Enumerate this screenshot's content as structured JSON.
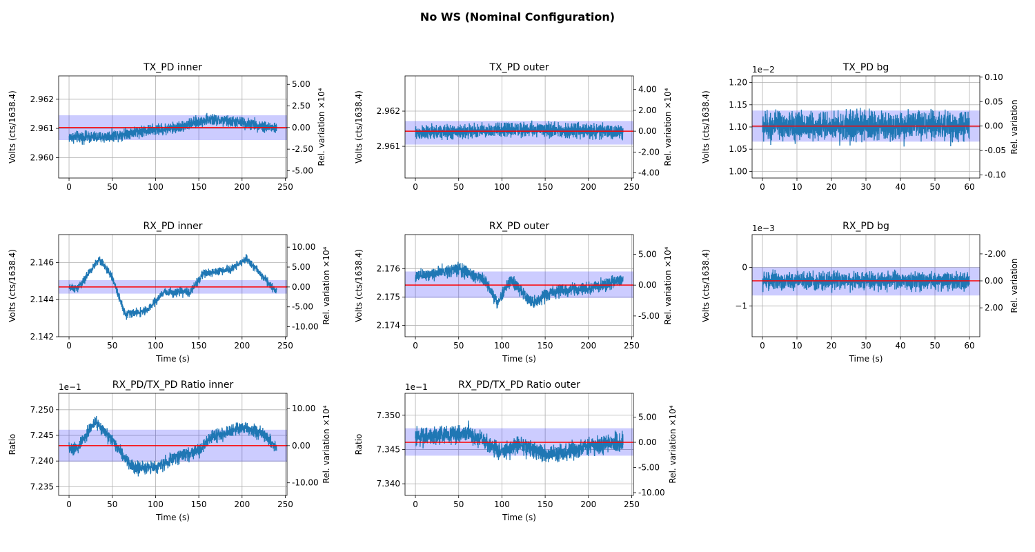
{
  "figure": {
    "title": "No WS (Nominal Configuration)",
    "colors": {
      "line": "#1f77b4",
      "mean": "#ff0000",
      "band": "#0000ff",
      "grid": "#b0b0b0"
    }
  },
  "chart_data": [
    {
      "type": "line",
      "title": "TX_PD inner",
      "xlabel": "",
      "ylabel": "Volts (cts/1638.4)",
      "y2label": "Rel. variation ×10⁴",
      "x_range": [
        0,
        240
      ],
      "duration_s": 240,
      "xlim": [
        -12,
        252
      ],
      "xticks": [
        0,
        50,
        100,
        150,
        200,
        250
      ],
      "xtick_labels": [
        "0",
        "50",
        "100",
        "150",
        "200",
        "250"
      ],
      "ylim": [
        2.9593,
        2.9628
      ],
      "yticks": [
        2.96,
        2.961,
        2.962
      ],
      "ytick_labels": [
        "2.960",
        "2.961",
        "2.962"
      ],
      "y_offset_label": "",
      "y2_ticks": [
        5,
        2.5,
        0,
        -2.5,
        -5
      ],
      "y2_tick_labels": [
        "5.00",
        "2.50",
        "0.00",
        "-2.50",
        "-5.00"
      ],
      "mean": 2.96103,
      "band": [
        2.9606,
        2.96145
      ],
      "trend": [
        [
          0,
          2.9607
        ],
        [
          40,
          2.9607
        ],
        [
          80,
          2.9609
        ],
        [
          120,
          2.961
        ],
        [
          160,
          2.9613
        ],
        [
          200,
          2.9612
        ],
        [
          240,
          2.961
        ]
      ],
      "noise_amp": 0.00053,
      "grid": true
    },
    {
      "type": "line",
      "title": "TX_PD outer",
      "xlabel": "",
      "ylabel": "Volts (cts/1638.4)",
      "y2label": "Rel. variation ×10⁴",
      "x_range": [
        0,
        240
      ],
      "duration_s": 240,
      "xlim": [
        -12,
        252
      ],
      "xticks": [
        0,
        50,
        100,
        150,
        200,
        250
      ],
      "xtick_labels": [
        "0",
        "50",
        "100",
        "150",
        "200",
        "250"
      ],
      "ylim": [
        2.9601,
        2.963
      ],
      "yticks": [
        2.961,
        2.962
      ],
      "ytick_labels": [
        "2.961",
        "2.962"
      ],
      "y_offset_label": "",
      "y2_ticks": [
        4,
        2,
        0,
        -2,
        -4
      ],
      "y2_tick_labels": [
        "4.00",
        "2.00",
        "0.00",
        "-2.00",
        "-4.00"
      ],
      "mean": 2.96143,
      "band": [
        2.96105,
        2.96172
      ],
      "trend": [
        [
          0,
          2.96138
        ],
        [
          60,
          2.96142
        ],
        [
          120,
          2.96148
        ],
        [
          180,
          2.96145
        ],
        [
          240,
          2.9614
        ]
      ],
      "noise_amp": 0.00055,
      "grid": true
    },
    {
      "type": "line",
      "title": "TX_PD bg",
      "xlabel": "",
      "ylabel": "Volts (cts/1638.4)",
      "y2label": "Rel. variation",
      "x_range": [
        0,
        60
      ],
      "duration_s": 60,
      "xlim": [
        -3,
        63
      ],
      "xticks": [
        0,
        10,
        20,
        30,
        40,
        50,
        60
      ],
      "xtick_labels": [
        "0",
        "10",
        "20",
        "30",
        "40",
        "50",
        "60"
      ],
      "ylim": [
        0.985,
        1.215
      ],
      "yticks": [
        1.0,
        1.05,
        1.1,
        1.15,
        1.2
      ],
      "ytick_labels": [
        "1.00",
        "1.05",
        "1.10",
        "1.15",
        "1.20"
      ],
      "y_offset_label": "1e−2",
      "y2_ticks": [
        0.1,
        0.05,
        0,
        -0.05,
        -0.1
      ],
      "y2_tick_labels": [
        "0.10",
        "0.05",
        "0.00",
        "-0.05",
        "-0.10"
      ],
      "mean": 1.102,
      "band": [
        1.067,
        1.137
      ],
      "trend": [
        [
          0,
          1.102
        ],
        [
          60,
          1.102
        ]
      ],
      "noise_amp": 0.09,
      "grid": true
    },
    {
      "type": "line",
      "title": "RX_PD inner",
      "xlabel": "Time (s)",
      "ylabel": "Volts (cts/1638.4)",
      "y2label": "Rel. variation ×10⁴",
      "x_range": [
        0,
        240
      ],
      "duration_s": 240,
      "xlim": [
        -12,
        252
      ],
      "xticks": [
        0,
        50,
        100,
        150,
        200,
        250
      ],
      "xtick_labels": [
        "0",
        "50",
        "100",
        "150",
        "200",
        "250"
      ],
      "ylim": [
        2.142,
        2.1475
      ],
      "yticks": [
        2.142,
        2.144,
        2.146
      ],
      "ytick_labels": [
        "2.142",
        "2.144",
        "2.146"
      ],
      "y_offset_label": "",
      "y2_ticks": [
        10,
        5,
        0,
        -5,
        -10
      ],
      "y2_tick_labels": [
        "10.00",
        "5.00",
        "0.00",
        "-5.00",
        "-10.00"
      ],
      "mean": 2.14468,
      "band": [
        2.14432,
        2.14505
      ],
      "trend": [
        [
          0,
          2.1446
        ],
        [
          10,
          2.1446
        ],
        [
          35,
          2.1462
        ],
        [
          50,
          2.1452
        ],
        [
          65,
          2.1432
        ],
        [
          90,
          2.1434
        ],
        [
          110,
          2.1444
        ],
        [
          140,
          2.1444
        ],
        [
          155,
          2.1454
        ],
        [
          185,
          2.1456
        ],
        [
          205,
          2.1462
        ],
        [
          225,
          2.1452
        ],
        [
          240,
          2.1444
        ]
      ],
      "noise_amp": 0.0006,
      "grid": true
    },
    {
      "type": "line",
      "title": "RX_PD outer",
      "xlabel": "Time (s)",
      "ylabel": "Volts (cts/1638.4)",
      "y2label": "Rel. variation ×10⁴",
      "x_range": [
        0,
        240
      ],
      "duration_s": 240,
      "xlim": [
        -12,
        252
      ],
      "xticks": [
        0,
        50,
        100,
        150,
        200,
        250
      ],
      "xtick_labels": [
        "0",
        "50",
        "100",
        "150",
        "200",
        "250"
      ],
      "ylim": [
        2.1736,
        2.1772
      ],
      "yticks": [
        2.174,
        2.175,
        2.176
      ],
      "ytick_labels": [
        "2.174",
        "2.175",
        "2.176"
      ],
      "y_offset_label": "",
      "y2_ticks": [
        5,
        0,
        -5
      ],
      "y2_tick_labels": [
        "5.00",
        "0.00",
        "-5.00"
      ],
      "mean": 2.17542,
      "band": [
        2.17497,
        2.1759
      ],
      "trend": [
        [
          0,
          2.1757
        ],
        [
          50,
          2.176
        ],
        [
          80,
          2.1756
        ],
        [
          95,
          2.1748
        ],
        [
          110,
          2.1756
        ],
        [
          135,
          2.1748
        ],
        [
          160,
          2.1752
        ],
        [
          200,
          2.1753
        ],
        [
          240,
          2.1756
        ]
      ],
      "noise_amp": 0.0006,
      "grid": true
    },
    {
      "type": "line",
      "title": "RX_PD bg",
      "xlabel": "Time (s)",
      "ylabel": "Volts (cts/1638.4)",
      "y2label": "Rel. variation",
      "x_range": [
        0,
        60
      ],
      "duration_s": 60,
      "xlim": [
        -3,
        63
      ],
      "xticks": [
        0,
        10,
        20,
        30,
        40,
        50,
        60
      ],
      "xtick_labels": [
        "0",
        "10",
        "20",
        "30",
        "40",
        "50",
        "60"
      ],
      "ylim": [
        -1.8,
        0.85
      ],
      "yticks": [
        -1,
        0
      ],
      "ytick_labels": [
        "−1",
        "0"
      ],
      "y_offset_label": "1e−3",
      "y2_ticks": [
        -2,
        0,
        2
      ],
      "y2_tick_labels": [
        "-2.00",
        "0.00",
        "2.00"
      ],
      "mean": -0.35,
      "band": [
        -0.73,
        0.0
      ],
      "trend": [
        [
          0,
          -0.35
        ],
        [
          60,
          -0.35
        ]
      ],
      "noise_amp": 0.62,
      "grid": true
    },
    {
      "type": "line",
      "title": "RX_PD/TX_PD Ratio inner",
      "xlabel": "Time (s)",
      "ylabel": "Ratio",
      "y2label": "Rel. variation ×10⁴",
      "x_range": [
        0,
        240
      ],
      "duration_s": 240,
      "xlim": [
        -12,
        252
      ],
      "xticks": [
        0,
        50,
        100,
        150,
        200,
        250
      ],
      "xtick_labels": [
        "0",
        "50",
        "100",
        "150",
        "200",
        "250"
      ],
      "ylim": [
        7.2333,
        7.2532
      ],
      "yticks": [
        7.235,
        7.24,
        7.245,
        7.25
      ],
      "ytick_labels": [
        "7.235",
        "7.240",
        "7.245",
        "7.250"
      ],
      "y_offset_label": "1e−1",
      "y2_ticks": [
        10,
        0,
        -10
      ],
      "y2_tick_labels": [
        "10.00",
        "0.00",
        "-10.00"
      ],
      "mean": 7.243,
      "band": [
        7.2399,
        7.2461
      ],
      "trend": [
        [
          0,
          7.2425
        ],
        [
          10,
          7.2425
        ],
        [
          30,
          7.2478
        ],
        [
          50,
          7.2438
        ],
        [
          75,
          7.2385
        ],
        [
          100,
          7.2388
        ],
        [
          130,
          7.2412
        ],
        [
          150,
          7.2418
        ],
        [
          165,
          7.2448
        ],
        [
          200,
          7.2465
        ],
        [
          225,
          7.2452
        ],
        [
          240,
          7.2425
        ]
      ],
      "noise_amp": 0.0034,
      "grid": true
    },
    {
      "type": "line",
      "title": "RX_PD/TX_PD Ratio outer",
      "xlabel": "Time (s)",
      "ylabel": "Ratio",
      "y2label": "Rel. variation ×10⁴",
      "x_range": [
        0,
        240
      ],
      "duration_s": 240,
      "xlim": [
        -12,
        252
      ],
      "xticks": [
        0,
        50,
        100,
        150,
        200,
        250
      ],
      "xtick_labels": [
        "0",
        "50",
        "100",
        "150",
        "200",
        "250"
      ],
      "ylim": [
        7.3383,
        7.3532
      ],
      "yticks": [
        7.34,
        7.345,
        7.35
      ],
      "ytick_labels": [
        "7.340",
        "7.345",
        "7.350"
      ],
      "y_offset_label": "1e−1",
      "y2_ticks": [
        5,
        0,
        -5,
        -10
      ],
      "y2_tick_labels": [
        "5.00",
        "0.00",
        "-5.00",
        "-10.00"
      ],
      "mean": 7.34605,
      "band": [
        7.3441,
        7.3481
      ],
      "trend": [
        [
          0,
          7.3468
        ],
        [
          60,
          7.3474
        ],
        [
          85,
          7.3458
        ],
        [
          100,
          7.3445
        ],
        [
          120,
          7.3458
        ],
        [
          140,
          7.3448
        ],
        [
          160,
          7.3442
        ],
        [
          200,
          7.3454
        ],
        [
          240,
          7.3462
        ]
      ],
      "noise_amp": 0.0035,
      "grid": true
    }
  ]
}
